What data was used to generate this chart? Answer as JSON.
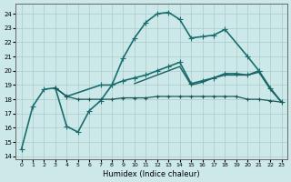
{
  "xlabel": "Humidex (Indice chaleur)",
  "xlim": [
    -0.5,
    23.5
  ],
  "ylim": [
    13.8,
    24.7
  ],
  "yticks": [
    14,
    15,
    16,
    17,
    18,
    19,
    20,
    21,
    22,
    23,
    24
  ],
  "xticks": [
    0,
    1,
    2,
    3,
    4,
    5,
    6,
    7,
    8,
    9,
    10,
    11,
    12,
    13,
    14,
    15,
    16,
    17,
    18,
    19,
    20,
    21,
    22,
    23
  ],
  "background_color": "#cde8e8",
  "grid_color": "#aacccc",
  "lines": [
    {
      "x": [
        0,
        1,
        2,
        3,
        4,
        5,
        6,
        7,
        8,
        9,
        10,
        11,
        12,
        13,
        14,
        15,
        16,
        17,
        18,
        20,
        21
      ],
      "y": [
        14.5,
        17.5,
        18.7,
        18.8,
        16.1,
        15.7,
        17.2,
        17.9,
        19.0,
        20.9,
        22.3,
        23.4,
        24.0,
        24.1,
        23.6,
        22.3,
        22.4,
        22.5,
        22.9,
        21.0,
        20.0
      ],
      "marker": "+",
      "color": "#1a6e6e",
      "lw": 1.2,
      "ms": 4.5
    },
    {
      "x": [
        3,
        4,
        7,
        8,
        9,
        10,
        11,
        12,
        13,
        14,
        15,
        16,
        17,
        18,
        19,
        20,
        21,
        22,
        23
      ],
      "y": [
        18.8,
        18.2,
        19.0,
        19.0,
        19.3,
        19.5,
        19.7,
        20.0,
        20.3,
        20.6,
        19.1,
        19.3,
        19.5,
        19.8,
        19.8,
        19.7,
        20.0,
        18.8,
        17.8
      ],
      "marker": "+",
      "color": "#1a6e6e",
      "lw": 1.2,
      "ms": 4.5
    },
    {
      "x": [
        3,
        4,
        5,
        6,
        7,
        8,
        9,
        10,
        11,
        12,
        13,
        14,
        15,
        16,
        17,
        18,
        19,
        20,
        21,
        22,
        23
      ],
      "y": [
        18.8,
        18.2,
        18.0,
        18.0,
        18.0,
        18.0,
        18.1,
        18.1,
        18.1,
        18.2,
        18.2,
        18.2,
        18.2,
        18.2,
        18.2,
        18.2,
        18.2,
        18.0,
        18.0,
        17.9,
        17.8
      ],
      "marker": "+",
      "color": "#1a5858",
      "lw": 0.9,
      "ms": 3.5
    },
    {
      "x": [
        10,
        11,
        12,
        13,
        14,
        15,
        16,
        17,
        18,
        19,
        20,
        21,
        22,
        23
      ],
      "y": [
        19.1,
        19.4,
        19.7,
        20.0,
        20.3,
        19.0,
        19.2,
        19.5,
        19.7,
        19.7,
        19.7,
        19.9,
        18.7,
        17.8
      ],
      "marker": null,
      "color": "#1a6060",
      "lw": 1.0,
      "ms": 0
    }
  ]
}
